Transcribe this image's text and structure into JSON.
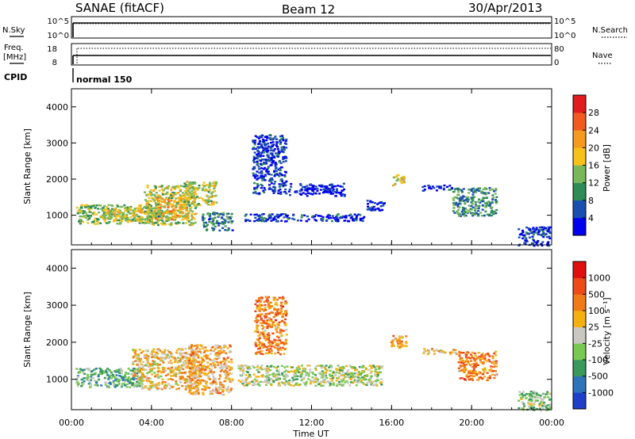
{
  "header": {
    "station": "SANAE (fitACF)",
    "beam": "Beam 12",
    "date": "30/Apr/2013"
  },
  "strips": {
    "nsky_label": "N.Sky",
    "nsearch_label": "N.Search",
    "nsky_ticks": [
      "10^5",
      "10^0"
    ],
    "nsearch_ticks": [
      "10^5",
      "10^0"
    ],
    "freq_label_line1": "Freq.",
    "freq_label_line2": "[MHz]",
    "freq_ticks": [
      "18",
      "8"
    ],
    "nave_label": "Nave",
    "nave_ticks": [
      "80",
      "0"
    ],
    "cpid_label": "CPID",
    "cpid_value": "normal 150"
  },
  "colorbars": {
    "power": {
      "label": "Power [dB]",
      "ticks": [
        "4",
        "8",
        "12",
        "16",
        "20",
        "24",
        "28"
      ],
      "colors": [
        "#0000ee",
        "#1a4fb0",
        "#2f8c57",
        "#79b85a",
        "#f6c11a",
        "#f49a1e",
        "#f15a20",
        "#e01c1c"
      ]
    },
    "velocity": {
      "label": "Velocity [m s⁻¹]",
      "ticks": [
        "1000",
        "500",
        "100",
        "25",
        "-25",
        "-100",
        "-500",
        "-1000"
      ],
      "colors": [
        "#1f3fc8",
        "#2f74b8",
        "#3a9a5a",
        "#78c851",
        "#c8c8c0",
        "#f4b010",
        "#f07a18",
        "#ee4a18",
        "#e01010"
      ]
    }
  },
  "chart_data": [
    {
      "type": "heatmap",
      "title": "Power",
      "xlabel": "Time UT",
      "ylabel": "Slant Range [km]",
      "x_ticks": [
        "00:00",
        "04:00",
        "08:00",
        "12:00",
        "16:00",
        "20:00",
        "00:00"
      ],
      "y_ticks": [
        "1000",
        "2000",
        "3000",
        "4000"
      ],
      "xlim_hours": [
        0,
        24
      ],
      "ylim_km": [
        180,
        4500
      ],
      "clim_db": [
        0,
        32
      ],
      "regions": [
        {
          "t0": 0.2,
          "t1": 4.6,
          "r0": 780,
          "r1": 1320,
          "level": 0.42
        },
        {
          "t0": 1.5,
          "t1": 3.5,
          "r0": 850,
          "r1": 1200,
          "level": 0.55
        },
        {
          "t0": 3.6,
          "t1": 6.2,
          "r0": 750,
          "r1": 1850,
          "level": 0.5
        },
        {
          "t0": 4.2,
          "t1": 5.8,
          "r0": 900,
          "r1": 1500,
          "level": 0.62
        },
        {
          "t0": 5.6,
          "t1": 7.2,
          "r0": 1300,
          "r1": 1950,
          "level": 0.48
        },
        {
          "t0": 6.5,
          "t1": 8.0,
          "r0": 600,
          "r1": 1100,
          "level": 0.28
        },
        {
          "t0": 8.6,
          "t1": 14.6,
          "r0": 850,
          "r1": 1060,
          "level": 0.12
        },
        {
          "t0": 9.0,
          "t1": 10.7,
          "r0": 1600,
          "r1": 3250,
          "level": 0.14
        },
        {
          "t0": 10.8,
          "t1": 13.6,
          "r0": 1550,
          "r1": 1900,
          "level": 0.06
        },
        {
          "t0": 14.7,
          "t1": 15.6,
          "r0": 1150,
          "r1": 1450,
          "level": 0.1
        },
        {
          "t0": 16.0,
          "t1": 16.6,
          "r0": 1850,
          "r1": 2150,
          "level": 0.55
        },
        {
          "t0": 17.5,
          "t1": 19.0,
          "r0": 1700,
          "r1": 1850,
          "level": 0.12
        },
        {
          "t0": 19.0,
          "t1": 21.2,
          "r0": 1000,
          "r1": 1780,
          "level": 0.32
        },
        {
          "t0": 22.3,
          "t1": 23.9,
          "r0": 180,
          "r1": 700,
          "level": 0.12
        }
      ]
    },
    {
      "type": "heatmap",
      "title": "Velocity",
      "xlabel": "Time UT",
      "ylabel": "Slant Range [km]",
      "x_ticks": [
        "00:00",
        "04:00",
        "08:00",
        "12:00",
        "16:00",
        "20:00",
        "00:00"
      ],
      "y_ticks": [
        "1000",
        "2000",
        "3000",
        "4000"
      ],
      "xlim_hours": [
        0,
        24
      ],
      "ylim_km": [
        180,
        4500
      ],
      "regions": [
        {
          "t0": 0.2,
          "t1": 3.5,
          "r0": 800,
          "r1": 1320,
          "level": 0.32
        },
        {
          "t0": 3.0,
          "t1": 6.2,
          "r0": 750,
          "r1": 1850,
          "level": 0.58
        },
        {
          "t0": 5.8,
          "t1": 8.0,
          "r0": 600,
          "r1": 1950,
          "level": 0.62
        },
        {
          "t0": 8.3,
          "t1": 15.5,
          "r0": 850,
          "r1": 1400,
          "level": 0.46
        },
        {
          "t0": 9.1,
          "t1": 10.7,
          "r0": 1700,
          "r1": 3250,
          "level": 0.72
        },
        {
          "t0": 15.9,
          "t1": 16.7,
          "r0": 1850,
          "r1": 2200,
          "level": 0.66
        },
        {
          "t0": 17.5,
          "t1": 19.2,
          "r0": 1700,
          "r1": 1850,
          "level": 0.56
        },
        {
          "t0": 19.3,
          "t1": 21.2,
          "r0": 1000,
          "r1": 1780,
          "level": 0.72
        },
        {
          "t0": 22.3,
          "t1": 23.9,
          "r0": 180,
          "r1": 700,
          "level": 0.4
        }
      ]
    }
  ]
}
